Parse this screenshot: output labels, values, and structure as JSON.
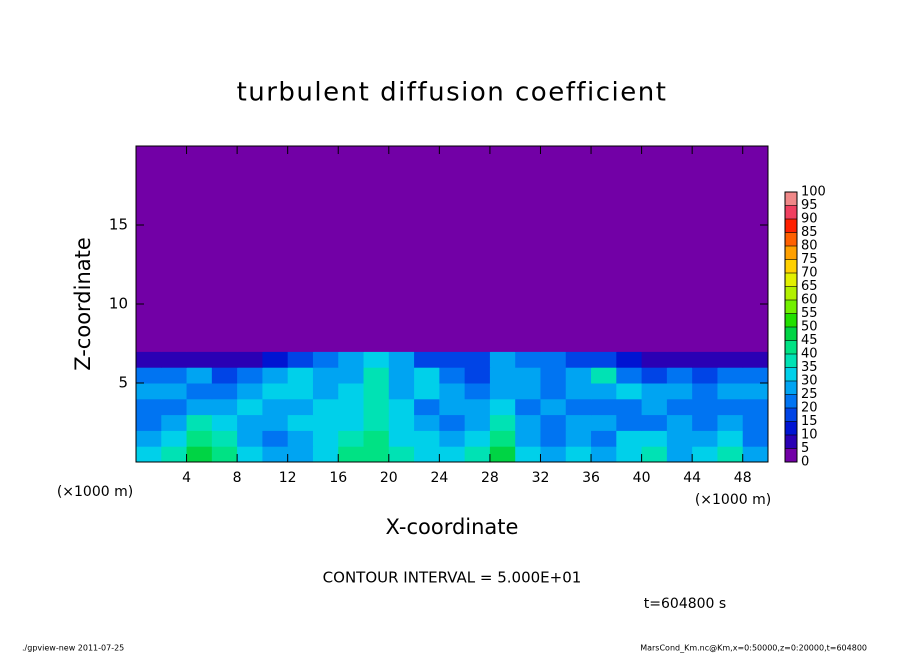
{
  "chart_data": {
    "type": "heatmap",
    "title": "turbulent diffusion coefficient",
    "x_label": "X-coordinate",
    "y_label": "Z-coordinate",
    "x_unit": "(×1000 m)",
    "contour_note": "CONTOUR INTERVAL = 5.000E+01",
    "time_note": "t=604800 s",
    "footer_left": "./gpview-new  2011-07-25",
    "footer_right": "MarsCond_Km.nc@Km,x=0:50000,z=0:20000,t=604800",
    "xlim": [
      0,
      50
    ],
    "ylim": [
      0,
      20
    ],
    "xticks": [
      4,
      8,
      12,
      16,
      20,
      24,
      28,
      32,
      36,
      40,
      44,
      48
    ],
    "yticks": [
      5,
      10,
      15
    ],
    "x_edges": [
      0,
      2,
      4,
      6,
      8,
      10,
      12,
      14,
      16,
      18,
      20,
      22,
      24,
      26,
      28,
      30,
      32,
      34,
      36,
      38,
      40,
      42,
      44,
      46,
      48,
      50
    ],
    "z_edges": [
      0,
      1,
      2,
      3,
      4,
      5,
      6,
      7,
      20
    ],
    "values": [
      [
        30,
        35,
        45,
        40,
        30,
        25,
        25,
        30,
        40,
        40,
        35,
        30,
        30,
        35,
        45,
        30,
        25,
        30,
        25,
        30,
        35,
        25,
        30,
        35,
        25
      ],
      [
        25,
        30,
        40,
        35,
        25,
        20,
        25,
        30,
        35,
        40,
        30,
        30,
        25,
        30,
        40,
        25,
        20,
        25,
        20,
        30,
        30,
        25,
        25,
        30,
        20
      ],
      [
        20,
        25,
        35,
        30,
        25,
        25,
        30,
        30,
        30,
        35,
        30,
        25,
        20,
        25,
        35,
        25,
        20,
        25,
        25,
        20,
        20,
        25,
        20,
        25,
        20
      ],
      [
        20,
        20,
        25,
        25,
        30,
        25,
        25,
        30,
        30,
        35,
        30,
        20,
        25,
        25,
        30,
        20,
        25,
        20,
        20,
        20,
        25,
        20,
        20,
        20,
        20
      ],
      [
        25,
        25,
        20,
        20,
        25,
        30,
        30,
        25,
        30,
        35,
        25,
        30,
        25,
        20,
        25,
        25,
        20,
        25,
        25,
        30,
        25,
        25,
        20,
        25,
        25
      ],
      [
        20,
        20,
        25,
        15,
        20,
        25,
        30,
        25,
        25,
        35,
        25,
        30,
        20,
        15,
        25,
        25,
        20,
        25,
        35,
        20,
        15,
        20,
        15,
        20,
        20
      ],
      [
        5,
        5,
        5,
        5,
        5,
        10,
        15,
        20,
        25,
        30,
        25,
        15,
        15,
        15,
        25,
        20,
        20,
        15,
        15,
        10,
        5,
        5,
        5,
        5,
        5
      ],
      [
        0,
        0,
        0,
        0,
        0,
        0,
        0,
        0,
        0,
        0,
        0,
        0,
        0,
        0,
        0,
        0,
        0,
        0,
        0,
        0,
        0,
        0,
        0,
        0,
        0
      ]
    ],
    "colorbar": {
      "ticks": [
        0,
        5,
        10,
        15,
        20,
        25,
        30,
        35,
        40,
        45,
        50,
        55,
        60,
        65,
        70,
        75,
        80,
        85,
        90,
        95,
        100
      ],
      "colors": [
        "#7200a6",
        "#2a00b4",
        "#0014d2",
        "#0044e6",
        "#0074f2",
        "#00a4f2",
        "#00d0ea",
        "#00e2b4",
        "#00e284",
        "#00d444",
        "#22e000",
        "#72f000",
        "#b2f000",
        "#e2f000",
        "#ffd000",
        "#ffa000",
        "#ff6000",
        "#ff2000",
        "#f04060",
        "#f08888"
      ]
    }
  }
}
